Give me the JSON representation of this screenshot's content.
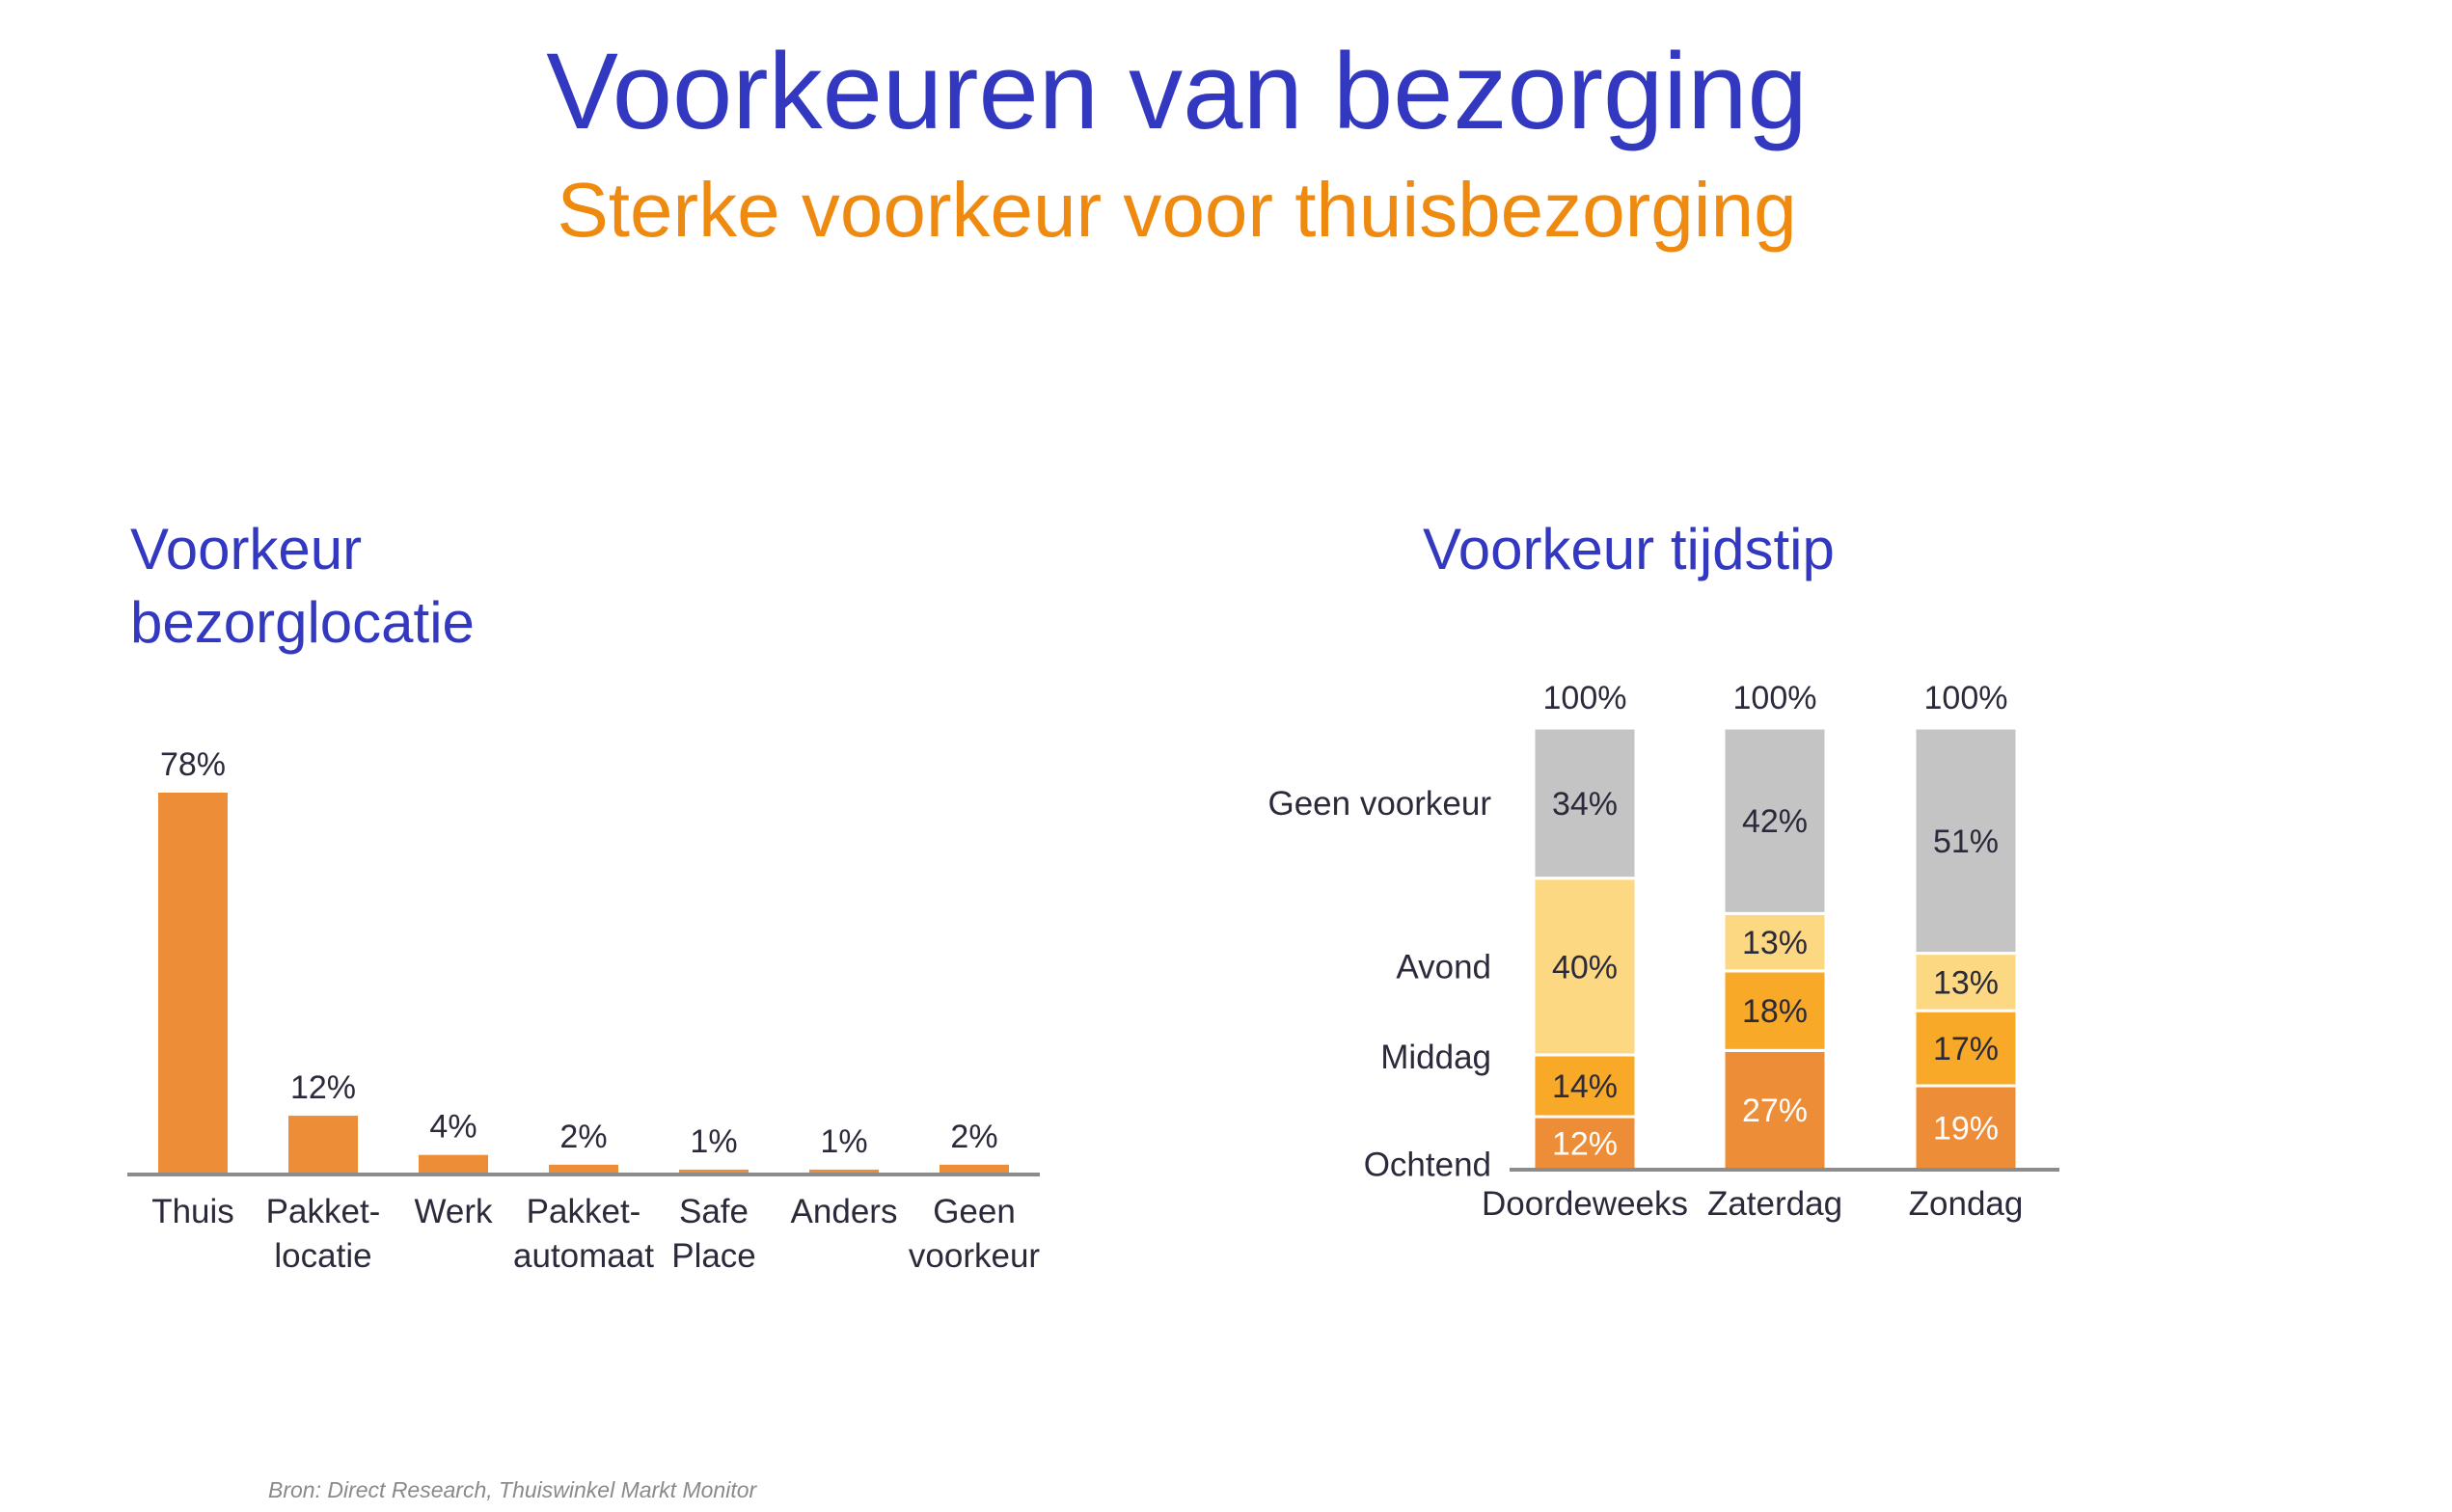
{
  "title": "Voorkeuren van bezorging",
  "subtitle": "Sterke voorkeur voor thuisbezorging",
  "source": "Bron: Direct Research, Thuiswinkel Markt Monitor",
  "colors": {
    "title": "#3338c0",
    "subtitle": "#ef8a10",
    "bar": "#ee8d38",
    "ochtend": "#ee8d38",
    "middag": "#f9a928",
    "avond": "#fdd882",
    "geen_voorkeur": "#c4c4c4",
    "axis": "#8c8c8c",
    "text": "#2a2a3a"
  },
  "chart_data": [
    {
      "type": "bar",
      "title": "Voorkeur bezorglocatie",
      "title_lines": [
        "Voorkeur",
        "bezorglocatie"
      ],
      "categories": [
        "Thuis",
        "Pakket-locatie",
        "Werk",
        "Pakket-automaat",
        "Safe Place",
        "Anders",
        "Geen voorkeur"
      ],
      "category_lines": [
        [
          "Thuis"
        ],
        [
          "Pakket-",
          "locatie"
        ],
        [
          "Werk"
        ],
        [
          "Pakket-",
          "automaat"
        ],
        [
          "Safe",
          "Place"
        ],
        [
          "Anders"
        ],
        [
          "Geen",
          "voorkeur"
        ]
      ],
      "values": [
        78,
        12,
        4,
        2,
        1,
        1,
        2
      ],
      "data_labels": [
        "78%",
        "12%",
        "4%",
        "2%",
        "1%",
        "1%",
        "2%"
      ],
      "ylim": [
        0,
        78
      ]
    },
    {
      "type": "bar",
      "stacked": true,
      "title": "Voorkeur tijdstip",
      "categories": [
        "Doordeweeks",
        "Zaterdag",
        "Zondag"
      ],
      "totals": [
        "100%",
        "100%",
        "100%"
      ],
      "series": [
        {
          "name": "Ochtend",
          "values": [
            12,
            27,
            19
          ]
        },
        {
          "name": "Middag",
          "values": [
            14,
            18,
            17
          ]
        },
        {
          "name": "Avond",
          "values": [
            40,
            13,
            13
          ]
        },
        {
          "name": "Geen voorkeur",
          "values": [
            34,
            42,
            51
          ]
        }
      ],
      "ylim": [
        0,
        100
      ]
    }
  ]
}
